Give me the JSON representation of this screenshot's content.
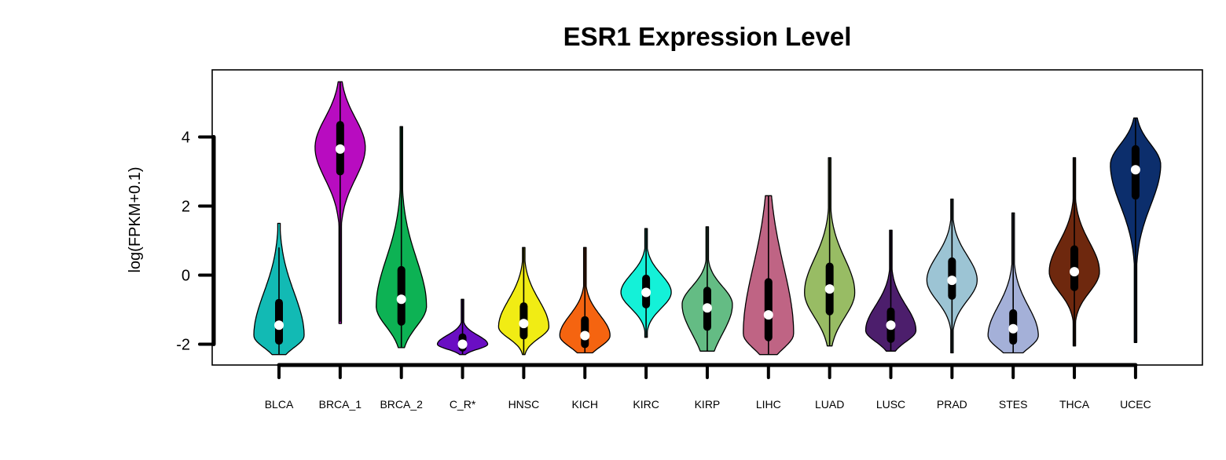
{
  "chart_data": {
    "type": "violin",
    "title": "ESR1 Expression Level",
    "xlabel": "",
    "ylabel": "log(FPKM+0.1)",
    "ylim": [
      -2.6,
      5.9
    ],
    "yticks": [
      -2,
      0,
      2,
      4
    ],
    "ytick_labels": [
      "-2",
      "0",
      "2",
      "4"
    ],
    "grid": false,
    "categories": [
      "BLCA",
      "BRCA_1",
      "BRCA_2",
      "C_R*",
      "HNSC",
      "KICH",
      "KIRC",
      "KIRP",
      "LIHC",
      "LUAD",
      "LUSC",
      "PRAD",
      "STES",
      "THCA",
      "UCEC"
    ],
    "series": [
      {
        "category": "BLCA",
        "color": "#12BAB4",
        "min": -2.3,
        "max": 1.5,
        "q1": -1.9,
        "median": -1.45,
        "q3": -0.8,
        "whisker_low": -2.3,
        "whisker_high": 0.8,
        "peak": -1.75,
        "max_half_width": 0.4
      },
      {
        "category": "BRCA_1",
        "color": "#B80CC0",
        "min": -1.4,
        "max": 5.6,
        "q1": 3.0,
        "median": 3.65,
        "q3": 4.35,
        "whisker_low": -1.35,
        "whisker_high": 5.6,
        "peak": 3.7,
        "max_half_width": 0.4
      },
      {
        "category": "BRCA_2",
        "color": "#0DB254",
        "min": -2.1,
        "max": 4.3,
        "q1": -1.35,
        "median": -0.7,
        "q3": 0.15,
        "whisker_low": -2.1,
        "whisker_high": 4.3,
        "peak": -0.9,
        "max_half_width": 0.4
      },
      {
        "category": "C_R*",
        "color": "#6A0EC3",
        "min": -2.3,
        "max": -0.7,
        "q1": -2.1,
        "median": -2.0,
        "q3": -1.8,
        "whisker_low": -2.3,
        "whisker_high": -0.7,
        "peak": -2.0,
        "max_half_width": 0.4
      },
      {
        "category": "HNSC",
        "color": "#F1EC14",
        "min": -2.3,
        "max": 0.8,
        "q1": -1.75,
        "median": -1.4,
        "q3": -0.9,
        "whisker_low": -2.3,
        "whisker_high": 0.8,
        "peak": -1.5,
        "max_half_width": 0.4
      },
      {
        "category": "KICH",
        "color": "#F56410",
        "min": -2.25,
        "max": 0.8,
        "q1": -2.0,
        "median": -1.75,
        "q3": -1.3,
        "whisker_low": -2.25,
        "whisker_high": 0.8,
        "peak": -1.75,
        "max_half_width": 0.4
      },
      {
        "category": "KIRC",
        "color": "#14F1D8",
        "min": -1.8,
        "max": 1.35,
        "q1": -0.85,
        "median": -0.5,
        "q3": -0.1,
        "whisker_low": -1.8,
        "whisker_high": 1.35,
        "peak": -0.5,
        "max_half_width": 0.4
      },
      {
        "category": "KIRP",
        "color": "#64BC84",
        "min": -2.2,
        "max": 1.4,
        "q1": -1.5,
        "median": -0.95,
        "q3": -0.45,
        "whisker_low": -2.2,
        "whisker_high": 1.4,
        "peak": -0.85,
        "max_half_width": 0.4
      },
      {
        "category": "LIHC",
        "color": "#BF6484",
        "min": -2.3,
        "max": 2.3,
        "q1": -1.8,
        "median": -1.15,
        "q3": -0.2,
        "whisker_low": -2.3,
        "whisker_high": 2.3,
        "peak": -1.7,
        "max_half_width": 0.4
      },
      {
        "category": "LUAD",
        "color": "#98BC64",
        "min": -2.05,
        "max": 3.4,
        "q1": -1.05,
        "median": -0.4,
        "q3": 0.25,
        "whisker_low": -2.05,
        "whisker_high": 3.4,
        "peak": -0.5,
        "max_half_width": 0.4
      },
      {
        "category": "LUSC",
        "color": "#4C1E6C",
        "min": -2.2,
        "max": 1.3,
        "q1": -1.85,
        "median": -1.45,
        "q3": -1.05,
        "whisker_low": -2.2,
        "whisker_high": 1.3,
        "peak": -1.6,
        "max_half_width": 0.4
      },
      {
        "category": "PRAD",
        "color": "#9CC4D4",
        "min": -2.25,
        "max": 2.2,
        "q1": -0.6,
        "median": -0.15,
        "q3": 0.4,
        "whisker_low": -2.25,
        "whisker_high": 2.2,
        "peak": -0.15,
        "max_half_width": 0.4
      },
      {
        "category": "STES",
        "color": "#A4B0D8",
        "min": -2.25,
        "max": 1.8,
        "q1": -1.9,
        "median": -1.55,
        "q3": -1.1,
        "whisker_low": -2.25,
        "whisker_high": 1.8,
        "peak": -1.75,
        "max_half_width": 0.4
      },
      {
        "category": "THCA",
        "color": "#6E280E",
        "min": -2.05,
        "max": 3.4,
        "q1": -0.35,
        "median": 0.1,
        "q3": 0.75,
        "whisker_low": -2.05,
        "whisker_high": 3.4,
        "peak": 0.1,
        "max_half_width": 0.4
      },
      {
        "category": "UCEC",
        "color": "#0C2E6C",
        "min": -1.95,
        "max": 4.55,
        "q1": 2.3,
        "median": 3.05,
        "q3": 3.65,
        "whisker_low": -1.95,
        "whisker_high": 4.55,
        "peak": 3.2,
        "max_half_width": 0.4
      }
    ]
  }
}
